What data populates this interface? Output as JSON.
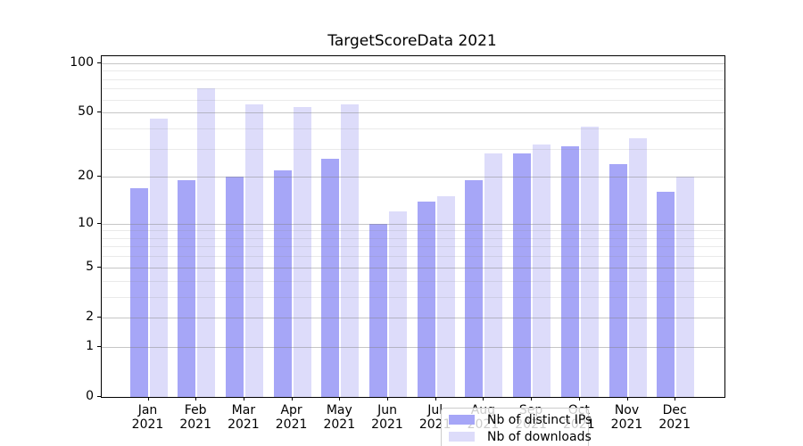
{
  "chart_data": {
    "type": "bar",
    "title": "TargetScoreData 2021",
    "categories": [
      "Jan 2021",
      "Feb 2021",
      "Mar 2021",
      "Apr 2021",
      "May 2021",
      "Jun 2021",
      "Jul 2021",
      "Aug 2021",
      "Sep 2021",
      "Oct 2021",
      "Nov 2021",
      "Dec 2021"
    ],
    "series": [
      {
        "name": "Nb of distinct IPs",
        "color": "#a6a6f7",
        "values": [
          17,
          19,
          20,
          22,
          26,
          10,
          14,
          19,
          28,
          31,
          24,
          16
        ]
      },
      {
        "name": "Nb of downloads",
        "color": "#dddcfa",
        "values": [
          46,
          70,
          56,
          54,
          56,
          12,
          15,
          28,
          32,
          41,
          35,
          20
        ]
      }
    ],
    "xlabel": "",
    "ylabel": "",
    "yscale": "log1p",
    "ylim": [
      0,
      110
    ],
    "y_major_ticks": [
      {
        "label": "100",
        "value": 100
      },
      {
        "label": "50",
        "value": 50
      },
      {
        "label": "20",
        "value": 20
      },
      {
        "label": "10",
        "value": 10
      },
      {
        "label": "5",
        "value": 5
      },
      {
        "label": "2",
        "value": 2
      },
      {
        "label": "1",
        "value": 1
      },
      {
        "label": "0",
        "value": 0
      }
    ],
    "y_minor_gridlines": [
      3,
      4,
      6,
      7,
      8,
      9,
      30,
      40,
      60,
      70,
      80,
      90
    ],
    "grid": "horizontal, majors and log minors, drawn over bars",
    "legend_position": "lower center",
    "colors": {
      "bar_dark": "#a6a6f7",
      "bar_light": "#dddcfa",
      "grid_major": "#c6c6c6",
      "grid_minor": "#e9e9e9",
      "spine": "#000000",
      "legend_border": "#cccccc"
    }
  }
}
